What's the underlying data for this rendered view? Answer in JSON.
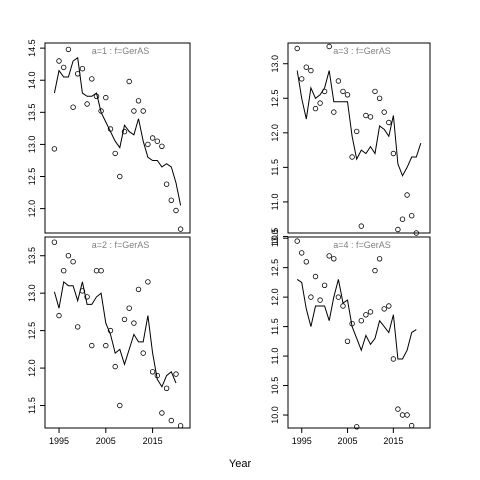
{
  "chart_data": {
    "type": "line",
    "xlabel": "Year",
    "panels": [
      {
        "title": "a=1 : f=GerAS",
        "xlim": [
          1992,
          2023
        ],
        "ylim": [
          11.62,
          14.58
        ],
        "yticks": [
          12.0,
          12.5,
          13.0,
          13.5,
          14.0,
          14.5
        ],
        "ytick_labels": [
          "12.0",
          "12.5",
          "13.0",
          "13.5",
          "14.0",
          "14.5"
        ],
        "xticks": [],
        "xtick_labels": [],
        "observed": {
          "x": [
            1994,
            1995,
            1996,
            1997,
            1998,
            1999,
            2000,
            2001,
            2002,
            2003,
            2004,
            2005,
            2006,
            2007,
            2008,
            2009,
            2010,
            2011,
            2012,
            2013,
            2014,
            2015,
            2016,
            2017,
            2018,
            2019,
            2020,
            2021,
            2022
          ],
          "y": [
            12.93,
            14.3,
            14.2,
            14.48,
            13.58,
            14.1,
            14.18,
            13.63,
            14.02,
            13.75,
            13.52,
            13.73,
            13.24,
            12.86,
            12.5,
            13.2,
            13.98,
            13.52,
            13.68,
            13.52,
            13.0,
            13.1,
            13.05,
            12.97,
            12.38,
            12.13,
            11.97,
            11.68,
            null
          ]
        },
        "fitted": {
          "x": [
            1994,
            1995,
            1996,
            1997,
            1998,
            1999,
            2000,
            2001,
            2002,
            2003,
            2004,
            2005,
            2006,
            2007,
            2008,
            2009,
            2010,
            2011,
            2012,
            2013,
            2014,
            2015,
            2016,
            2017,
            2018,
            2019,
            2020,
            2021,
            2022
          ],
          "y": [
            13.8,
            14.15,
            14.05,
            14.05,
            14.3,
            14.35,
            13.8,
            13.75,
            13.75,
            13.8,
            13.5,
            13.35,
            13.2,
            13.05,
            12.95,
            13.3,
            13.2,
            13.15,
            13.4,
            13.05,
            12.8,
            12.75,
            12.75,
            12.65,
            12.7,
            12.65,
            12.4,
            12.05,
            null
          ]
        }
      },
      {
        "title": "a=3 : f=GerAS",
        "xlim": [
          1992,
          2023
        ],
        "ylim": [
          10.55,
          13.3
        ],
        "yticks": [
          10.5,
          11.0,
          11.5,
          12.0,
          12.5,
          13.0
        ],
        "ytick_labels": [
          "10.5",
          "11.0",
          "11.5",
          "12.0",
          "12.5",
          "13.0"
        ],
        "xticks": [],
        "xtick_labels": [],
        "observed": {
          "x": [
            1994,
            1995,
            1996,
            1997,
            1998,
            1999,
            2000,
            2001,
            2002,
            2003,
            2004,
            2005,
            2006,
            2007,
            2008,
            2009,
            2010,
            2011,
            2012,
            2013,
            2014,
            2015,
            2016,
            2017,
            2018,
            2019,
            2020,
            2021,
            2022
          ],
          "y": [
            13.22,
            12.78,
            12.95,
            12.9,
            12.35,
            12.43,
            12.6,
            13.25,
            12.3,
            12.75,
            12.6,
            12.55,
            11.65,
            12.02,
            10.65,
            12.25,
            12.23,
            12.6,
            12.5,
            12.3,
            12.15,
            11.7,
            10.6,
            10.75,
            11.1,
            10.8,
            10.55,
            null,
            null
          ]
        },
        "fitted": {
          "x": [
            1994,
            1995,
            1996,
            1997,
            1998,
            1999,
            2000,
            2001,
            2002,
            2003,
            2004,
            2005,
            2006,
            2007,
            2008,
            2009,
            2010,
            2011,
            2012,
            2013,
            2014,
            2015,
            2016,
            2017,
            2018,
            2019,
            2020,
            2021,
            2022
          ],
          "y": [
            12.9,
            12.5,
            12.2,
            12.65,
            12.5,
            12.55,
            12.65,
            12.9,
            12.45,
            12.45,
            12.45,
            12.45,
            11.95,
            11.62,
            11.75,
            11.7,
            11.8,
            11.7,
            12.1,
            12.05,
            11.95,
            12.25,
            11.55,
            11.38,
            11.5,
            11.65,
            11.65,
            11.85,
            null
          ]
        }
      },
      {
        "title": "a=2 : f=GerAS",
        "xlim": [
          1992,
          2023
        ],
        "ylim": [
          11.2,
          13.75
        ],
        "yticks": [
          11.5,
          12.0,
          12.5,
          13.0,
          13.5
        ],
        "ytick_labels": [
          "11.5",
          "12.0",
          "12.5",
          "13.0",
          "13.5"
        ],
        "xticks": [
          1995,
          2005,
          2015
        ],
        "xtick_labels": [
          "1995",
          "2005",
          "2015"
        ],
        "observed": {
          "x": [
            1994,
            1995,
            1996,
            1997,
            1998,
            1999,
            2000,
            2001,
            2002,
            2003,
            2004,
            2005,
            2006,
            2007,
            2008,
            2009,
            2010,
            2011,
            2012,
            2013,
            2014,
            2015,
            2016,
            2017,
            2018,
            2019,
            2020,
            2021,
            2022
          ],
          "y": [
            13.68,
            12.7,
            13.3,
            13.5,
            13.42,
            12.55,
            13.03,
            12.95,
            12.3,
            13.3,
            13.3,
            12.3,
            12.5,
            12.02,
            11.5,
            12.65,
            12.8,
            12.6,
            13.05,
            12.2,
            13.15,
            11.95,
            11.9,
            11.4,
            11.73,
            11.3,
            11.92,
            11.23,
            null
          ]
        },
        "fitted": {
          "x": [
            1994,
            1995,
            1996,
            1997,
            1998,
            1999,
            2000,
            2001,
            2002,
            2003,
            2004,
            2005,
            2006,
            2007,
            2008,
            2009,
            2010,
            2011,
            2012,
            2013,
            2014,
            2015,
            2016,
            2017,
            2018,
            2019,
            2020,
            2021,
            2022
          ],
          "y": [
            13.02,
            12.8,
            13.15,
            13.1,
            13.1,
            12.9,
            13.15,
            12.85,
            12.85,
            12.95,
            13.0,
            12.6,
            12.45,
            12.2,
            12.25,
            12.05,
            12.25,
            12.45,
            12.35,
            12.35,
            12.7,
            12.2,
            11.85,
            11.75,
            11.9,
            11.95,
            11.8,
            null,
            null
          ]
        }
      },
      {
        "title": "a=4 : f=GerAS",
        "xlim": [
          1992,
          2023
        ],
        "ylim": [
          9.78,
          13.02
        ],
        "yticks": [
          10.0,
          10.5,
          11.0,
          11.5,
          12.0,
          12.5,
          13.0
        ],
        "ytick_labels": [
          "10.0",
          "10.5",
          "11.0",
          "11.5",
          "12.0",
          "12.5",
          "13.0"
        ],
        "xticks": [
          1995,
          2005,
          2015
        ],
        "xtick_labels": [
          "1995",
          "2005",
          "2015"
        ],
        "observed": {
          "x": [
            1994,
            1995,
            1996,
            1997,
            1998,
            1999,
            2000,
            2001,
            2002,
            2003,
            2004,
            2005,
            2006,
            2007,
            2008,
            2009,
            2010,
            2011,
            2012,
            2013,
            2014,
            2015,
            2016,
            2017,
            2018,
            2019,
            2020,
            2021,
            2022
          ],
          "y": [
            12.95,
            12.75,
            12.6,
            12.0,
            12.35,
            11.95,
            12.2,
            12.7,
            12.65,
            12.0,
            11.85,
            11.25,
            11.55,
            9.8,
            11.6,
            11.7,
            11.75,
            12.45,
            12.65,
            11.8,
            11.85,
            10.95,
            10.1,
            10.0,
            10.0,
            9.82,
            null,
            null,
            null
          ]
        },
        "fitted": {
          "x": [
            1994,
            1995,
            1996,
            1997,
            1998,
            1999,
            2000,
            2001,
            2002,
            2003,
            2004,
            2005,
            2006,
            2007,
            2008,
            2009,
            2010,
            2011,
            2012,
            2013,
            2014,
            2015,
            2016,
            2017,
            2018,
            2019,
            2020,
            2021,
            2022
          ],
          "y": [
            12.3,
            12.25,
            11.8,
            11.5,
            11.85,
            11.85,
            11.85,
            11.6,
            12.0,
            12.3,
            11.9,
            11.95,
            11.5,
            11.3,
            11.1,
            11.35,
            11.2,
            11.3,
            11.6,
            11.5,
            11.4,
            11.7,
            10.95,
            10.95,
            11.1,
            11.4,
            11.45,
            null,
            null
          ]
        }
      }
    ]
  }
}
